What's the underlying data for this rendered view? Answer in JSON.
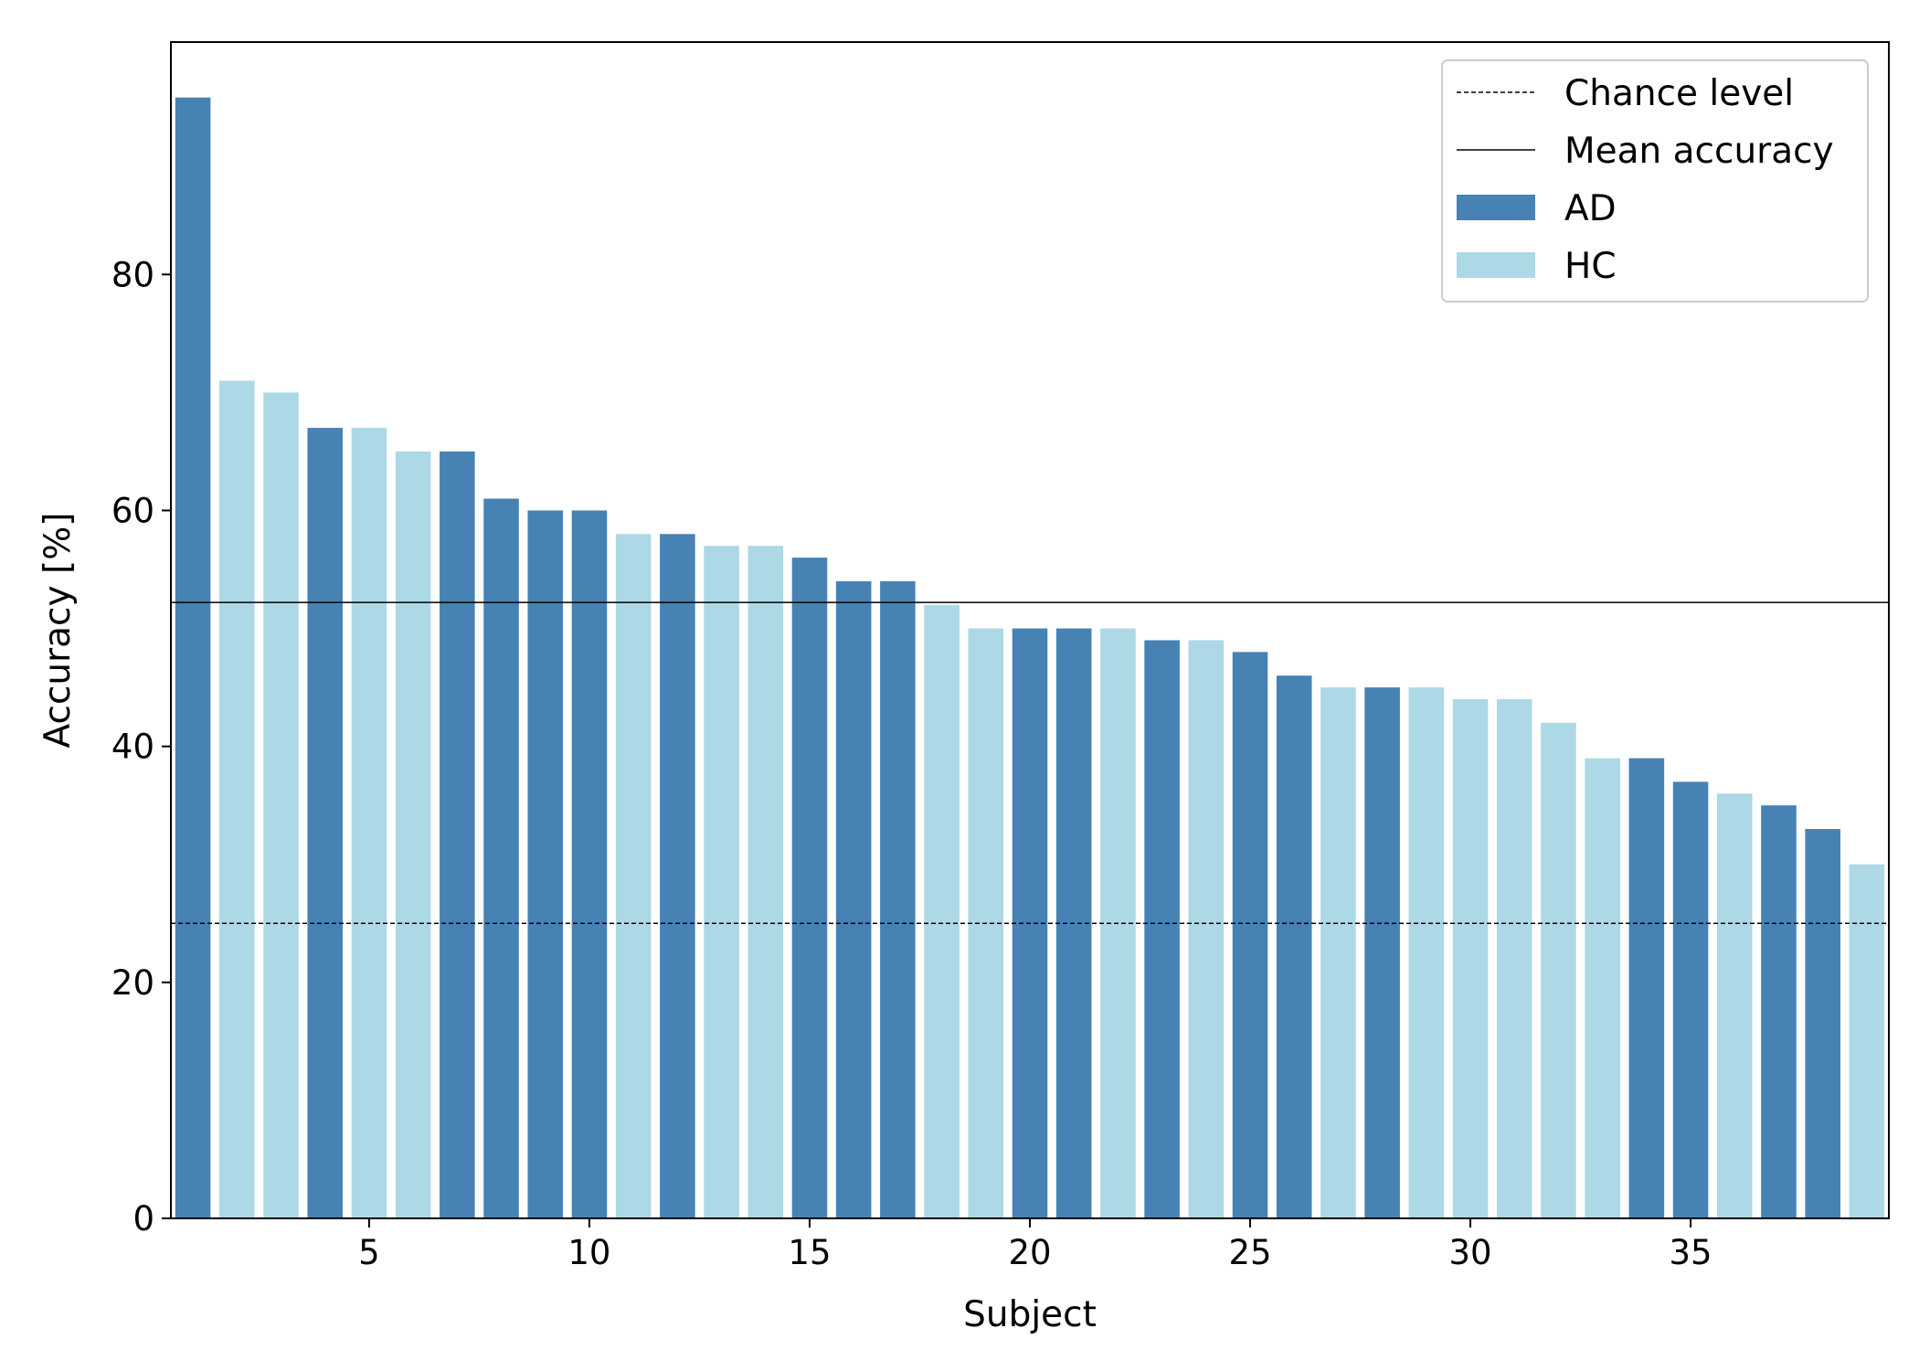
{
  "chart_data": {
    "type": "bar",
    "xlabel": "Subject",
    "ylabel": "Accuracy [%]",
    "xlim": [
      0.5,
      39.5
    ],
    "ylim": [
      0,
      99.7
    ],
    "x": [
      1,
      2,
      3,
      4,
      5,
      6,
      7,
      8,
      9,
      10,
      11,
      12,
      13,
      14,
      15,
      16,
      17,
      18,
      19,
      20,
      21,
      22,
      23,
      24,
      25,
      26,
      27,
      28,
      29,
      30,
      31,
      32,
      33,
      34,
      35,
      36,
      37,
      38,
      39
    ],
    "values": [
      95,
      71,
      70,
      67,
      67,
      65,
      65,
      61,
      60,
      60,
      58,
      58,
      57,
      57,
      56,
      54,
      54,
      52,
      50,
      50,
      50,
      50,
      49,
      49,
      48,
      46,
      45,
      45,
      45,
      44,
      44,
      42,
      39,
      39,
      37,
      36,
      35,
      33,
      30
    ],
    "groups": [
      "AD",
      "HC",
      "HC",
      "AD",
      "HC",
      "HC",
      "AD",
      "AD",
      "AD",
      "AD",
      "HC",
      "AD",
      "HC",
      "HC",
      "AD",
      "AD",
      "AD",
      "HC",
      "HC",
      "AD",
      "AD",
      "HC",
      "AD",
      "HC",
      "AD",
      "AD",
      "HC",
      "AD",
      "HC",
      "HC",
      "HC",
      "HC",
      "HC",
      "AD",
      "AD",
      "HC",
      "AD",
      "AD",
      "HC"
    ],
    "x_ticks": [
      5,
      10,
      15,
      20,
      25,
      30,
      35
    ],
    "y_ticks": [
      0,
      20,
      40,
      60,
      80
    ],
    "reference_lines": [
      {
        "name": "Chance level",
        "value": 25,
        "style": "dashed"
      },
      {
        "name": "Mean accuracy",
        "value": 52.2,
        "style": "solid"
      }
    ],
    "series_colors": {
      "AD": "#4682b4",
      "HC": "#add8e6"
    },
    "legend": {
      "placement": "top-right",
      "items": [
        {
          "label": "Chance level",
          "kind": "dashed-line"
        },
        {
          "label": "Mean accuracy",
          "kind": "solid-line"
        },
        {
          "label": "AD",
          "kind": "patch",
          "group": "AD"
        },
        {
          "label": "HC",
          "kind": "patch",
          "group": "HC"
        }
      ]
    },
    "grid": false
  }
}
